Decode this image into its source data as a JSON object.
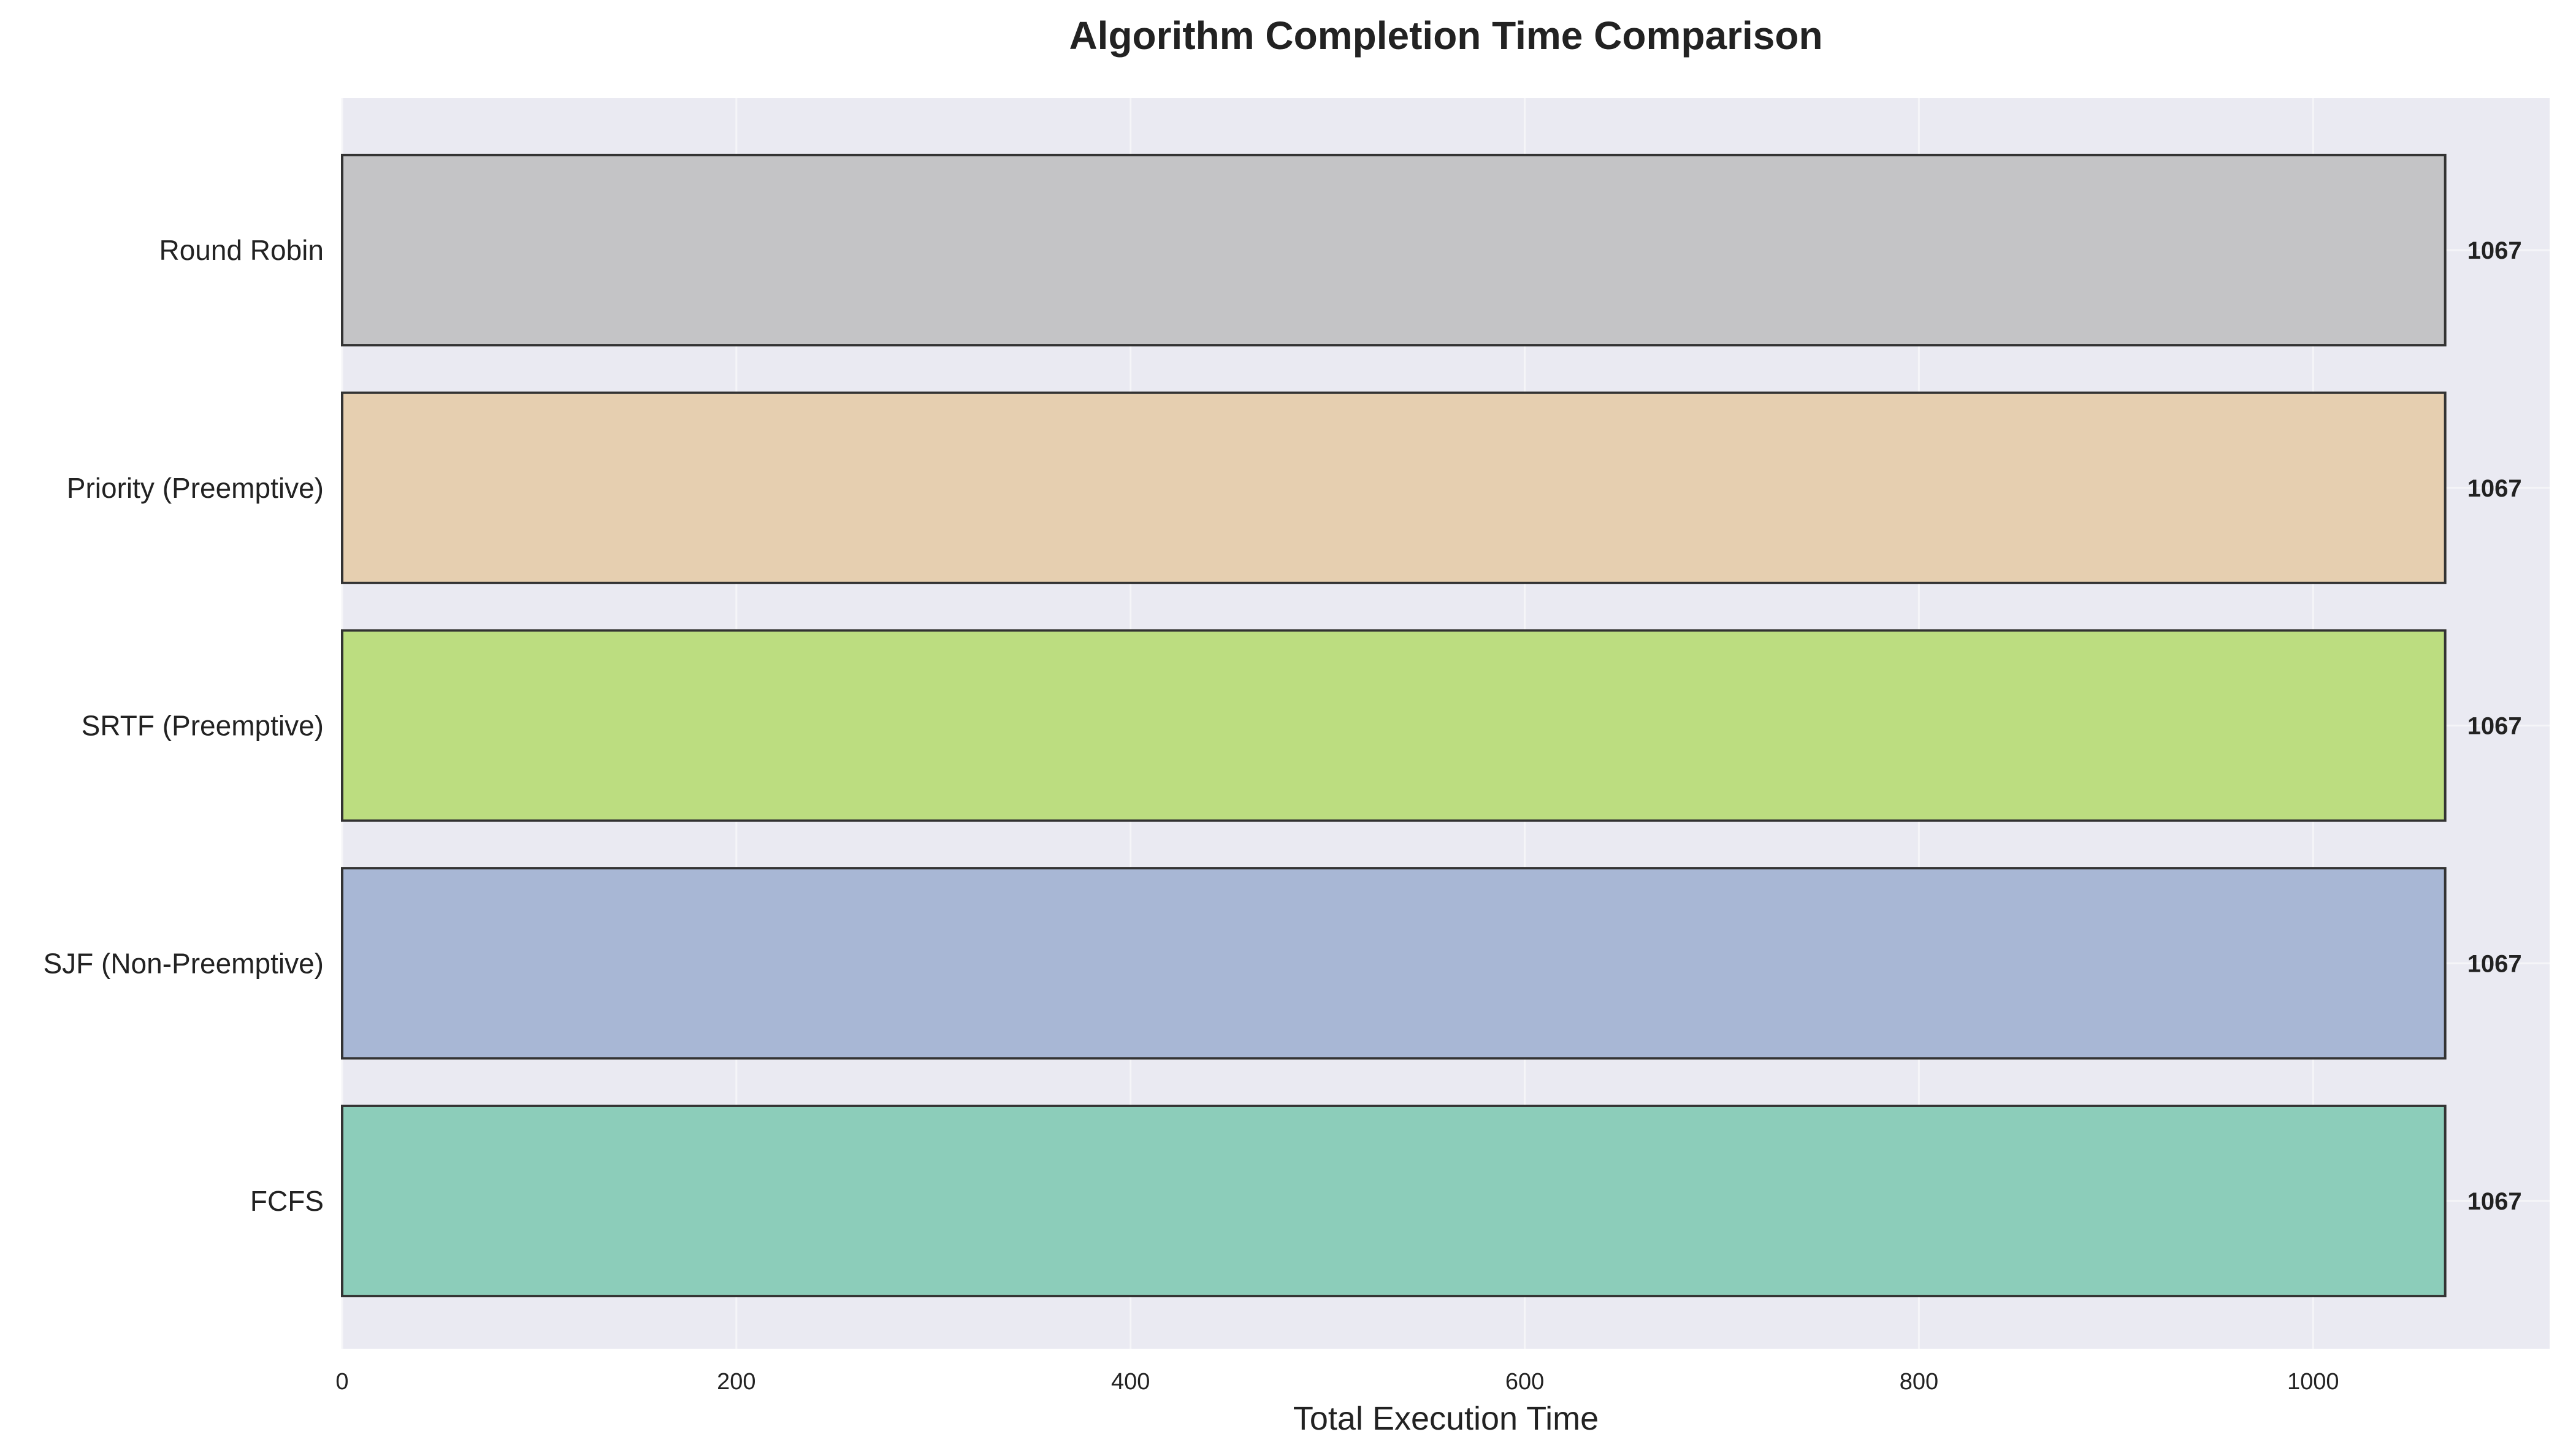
{
  "chart_data": {
    "type": "bar",
    "orientation": "horizontal",
    "title": "Algorithm Completion Time Comparison",
    "xlabel": "Total Execution Time",
    "ylabel": "",
    "xlim": [
      0,
      1120
    ],
    "xticks": [
      0,
      200,
      400,
      600,
      800,
      1000
    ],
    "grid": true,
    "legend": "none",
    "categories": [
      "Round Robin",
      "Priority (Preemptive)",
      "SRTF (Preemptive)",
      "SJF (Non-Preemptive)",
      "FCFS"
    ],
    "values": [
      1067,
      1067,
      1067,
      1067,
      1067
    ],
    "value_labels": [
      "1067",
      "1067",
      "1067",
      "1067",
      "1067"
    ],
    "colors": [
      "#c4c4c6",
      "#e6cfb0",
      "#bcdd80",
      "#a8b7d5",
      "#8ccdba"
    ],
    "edge_color": "#333333",
    "plot_background": "#eaeaf2",
    "grid_color": "#f5f5f8"
  }
}
